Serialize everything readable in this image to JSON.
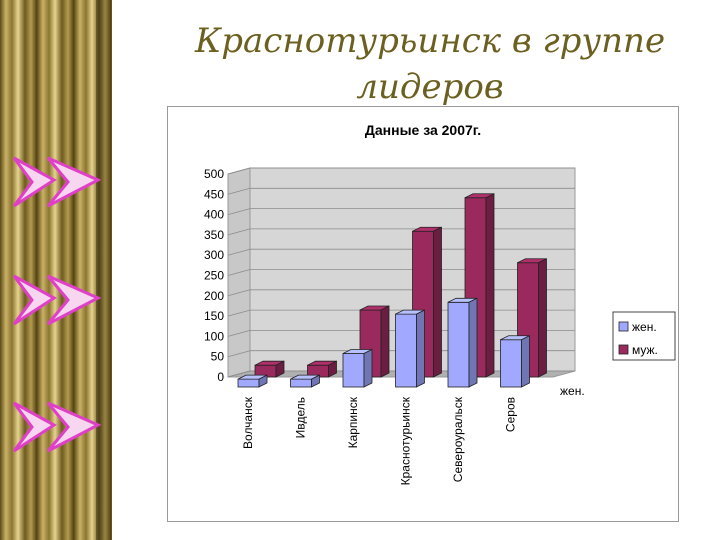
{
  "slide": {
    "title_line1": "Краснотурьинск  в группе",
    "title_line2": "лидеров"
  },
  "decor": {
    "arrow_icon": "double-arrow-icon",
    "arrow_color": "#e040c8",
    "strip_color": "#b39c4f"
  },
  "chart_data": {
    "type": "bar",
    "title": "Данные за 2007г.",
    "categories": [
      "Волчанск",
      "Ивдель",
      "Карпинск",
      "Краснотурьинск",
      "Североуральск",
      "Серов"
    ],
    "series": [
      {
        "name": "жен.",
        "color": "#a0a8ff",
        "values": [
          20,
          20,
          85,
          185,
          215,
          120
        ]
      },
      {
        "name": "муж.",
        "color": "#9a2a5e",
        "values": [
          30,
          30,
          170,
          370,
          455,
          290
        ]
      }
    ],
    "ylim": [
      0,
      500
    ],
    "yticks": [
      0,
      50,
      100,
      150,
      200,
      250,
      300,
      350,
      400,
      450,
      500
    ],
    "depth_axis_label": "жен.",
    "legend_position": "right",
    "grid": true
  }
}
